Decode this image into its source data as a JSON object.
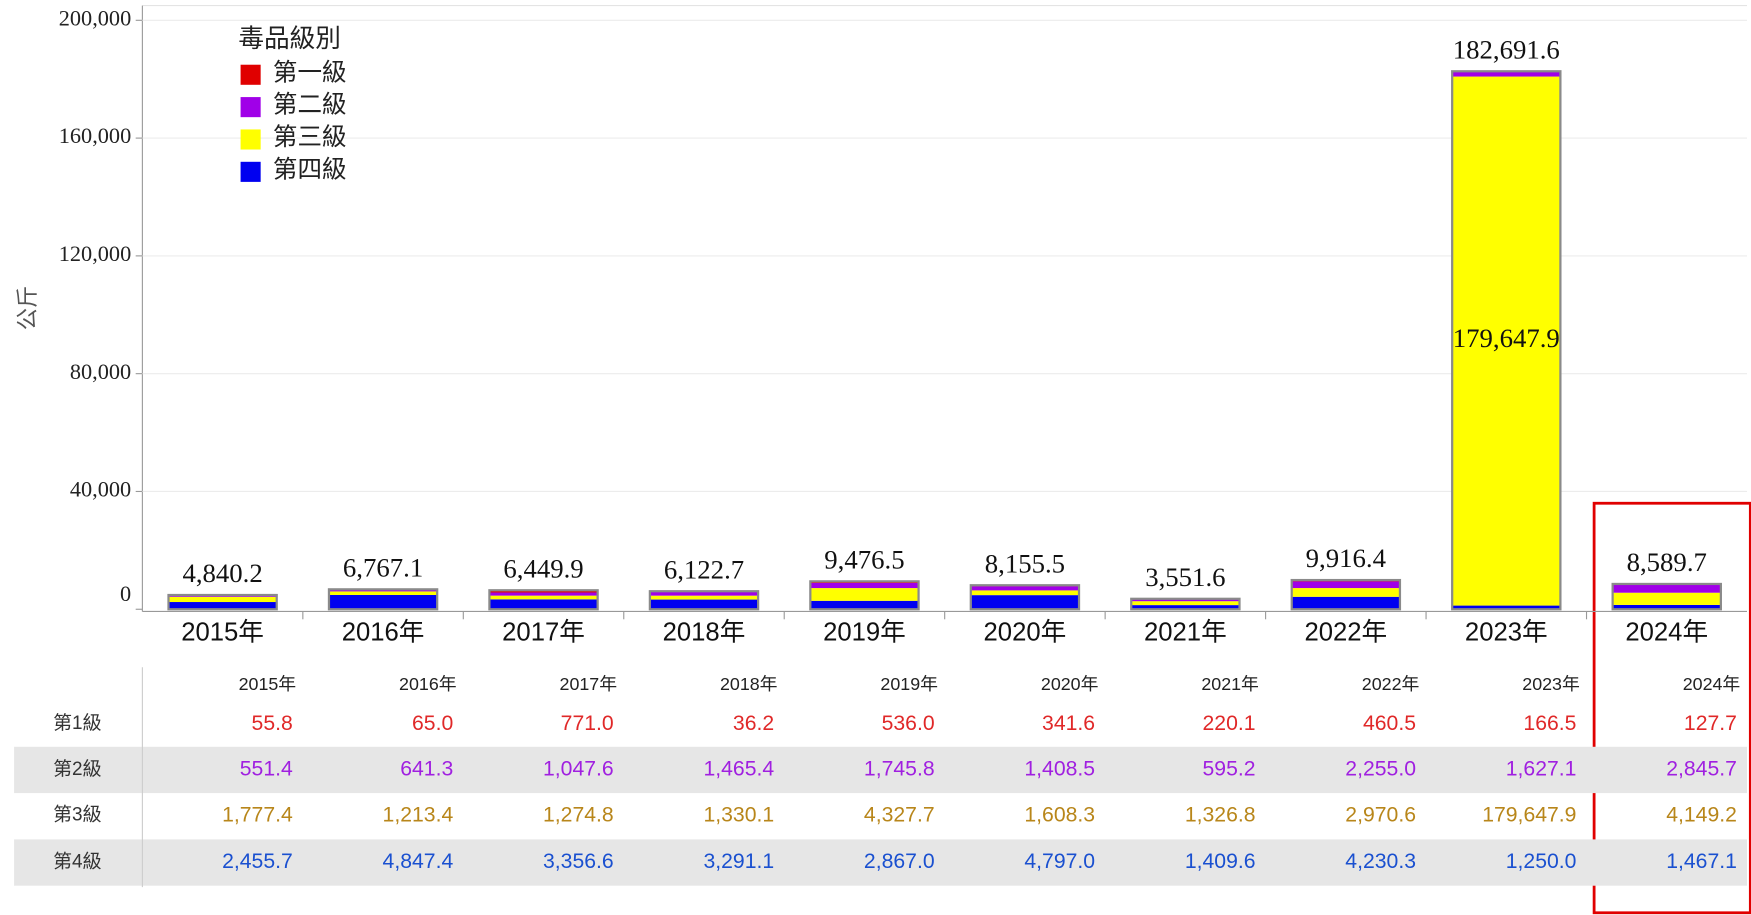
{
  "chart_data": {
    "type": "bar",
    "stacked": true,
    "ylabel": "公斤",
    "legend_title": "毒品級別",
    "legend": "upper-left",
    "grid": true,
    "categories": [
      "2015年",
      "2016年",
      "2017年",
      "2018年",
      "2019年",
      "2020年",
      "2021年",
      "2022年",
      "2023年",
      "2024年"
    ],
    "ylim": [
      0,
      205000
    ],
    "yticks": [
      0,
      {
        "value": 40000,
        "label": "40,000"
      },
      {
        "value": 80000,
        "label": "80,000"
      },
      {
        "value": 120000,
        "label": "120,000"
      },
      {
        "value": 160000,
        "label": "160,000"
      },
      {
        "value": 200000,
        "label": "200,000"
      }
    ],
    "series": [
      {
        "name": "第一級",
        "color": "#e00000",
        "table_color": "#e02828",
        "values": [
          55.8,
          65.0,
          771.0,
          36.2,
          536.0,
          341.6,
          220.1,
          460.5,
          166.5,
          127.7
        ],
        "value_labels": [
          "55.8",
          "65.0",
          "771.0",
          "36.2",
          "536.0",
          "341.6",
          "220.1",
          "460.5",
          "166.5",
          "127.7"
        ]
      },
      {
        "name": "第二級",
        "color": "#a000e8",
        "table_color": "#a020e0",
        "values": [
          551.4,
          641.3,
          1047.6,
          1465.4,
          1745.8,
          1408.5,
          595.2,
          2255.0,
          1627.1,
          2845.7
        ],
        "value_labels": [
          "551.4",
          "641.3",
          "1,047.6",
          "1,465.4",
          "1,745.8",
          "1,408.5",
          "595.2",
          "2,255.0",
          "1,627.1",
          "2,845.7"
        ]
      },
      {
        "name": "第三級",
        "color": "#ffff00",
        "table_color": "#b8861a",
        "values": [
          1777.4,
          1213.4,
          1274.8,
          1330.1,
          4327.7,
          1608.3,
          1326.8,
          2970.6,
          179647.9,
          4149.2
        ],
        "value_labels": [
          "1,777.4",
          "1,213.4",
          "1,274.8",
          "1,330.1",
          "4,327.7",
          "1,608.3",
          "1,326.8",
          "2,970.6",
          "179,647.9",
          "4,149.2"
        ]
      },
      {
        "name": "第四級",
        "color": "#0000f0",
        "table_color": "#1a50d0",
        "values": [
          2455.7,
          4847.4,
          3356.6,
          3291.1,
          2867.0,
          4797.0,
          1409.6,
          4230.3,
          1250.0,
          1467.1
        ],
        "value_labels": [
          "2,455.7",
          "4,847.4",
          "3,356.6",
          "3,291.1",
          "2,867.0",
          "4,797.0",
          "1,409.6",
          "4,230.3",
          "1,250.0",
          "1,467.1"
        ]
      }
    ],
    "totals": {
      "values": [
        4840.2,
        6767.1,
        6449.9,
        6122.7,
        9476.5,
        8155.5,
        3551.6,
        9916.4,
        182691.6,
        8589.7
      ],
      "value_labels": [
        "4,840.2",
        "6,767.1",
        "6,449.9",
        "6,122.7",
        "9,476.5",
        "8,155.5",
        "3,551.6",
        "9,916.4",
        "182,691.6",
        "8,589.7"
      ]
    },
    "table": {
      "row_labels": [
        "第1級",
        "第2級",
        "第3級",
        "第4級"
      ]
    }
  }
}
